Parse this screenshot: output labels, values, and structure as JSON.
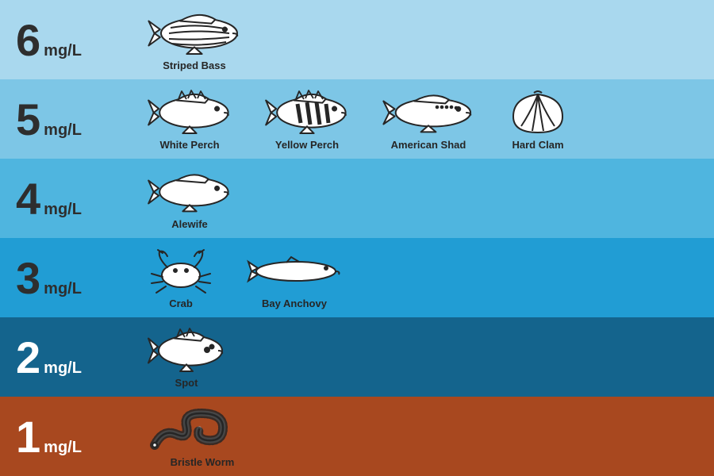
{
  "unit": "mg/L",
  "text_color_dark": "#2e2e2e",
  "text_color_light": "#ffffff",
  "icon_stroke": "#262626",
  "icon_fill": "#ffffff",
  "rows": [
    {
      "level": "6",
      "bg": "#a9d8ee",
      "label_color": "#2e2e2e",
      "species": [
        {
          "name": "Striped Bass",
          "icon": "striped_bass"
        }
      ]
    },
    {
      "level": "5",
      "bg": "#7dc6e6",
      "label_color": "#2e2e2e",
      "species": [
        {
          "name": "White Perch",
          "icon": "white_perch"
        },
        {
          "name": "Yellow Perch",
          "icon": "yellow_perch"
        },
        {
          "name": "American Shad",
          "icon": "american_shad"
        },
        {
          "name": "Hard Clam",
          "icon": "hard_clam"
        }
      ]
    },
    {
      "level": "4",
      "bg": "#4fb5df",
      "label_color": "#2e2e2e",
      "species": [
        {
          "name": "Alewife",
          "icon": "alewife"
        }
      ]
    },
    {
      "level": "3",
      "bg": "#219dd4",
      "label_color": "#2e2e2e",
      "species": [
        {
          "name": "Crab",
          "icon": "crab"
        },
        {
          "name": "Bay Anchovy",
          "icon": "bay_anchovy"
        }
      ]
    },
    {
      "level": "2",
      "bg": "#14648d",
      "label_color": "#ffffff",
      "species": [
        {
          "name": "Spot",
          "icon": "spot"
        }
      ]
    },
    {
      "level": "1",
      "bg": "#a8481f",
      "label_color": "#ffffff",
      "species": [
        {
          "name": "Bristle Worm",
          "icon": "bristle_worm"
        }
      ]
    }
  ]
}
